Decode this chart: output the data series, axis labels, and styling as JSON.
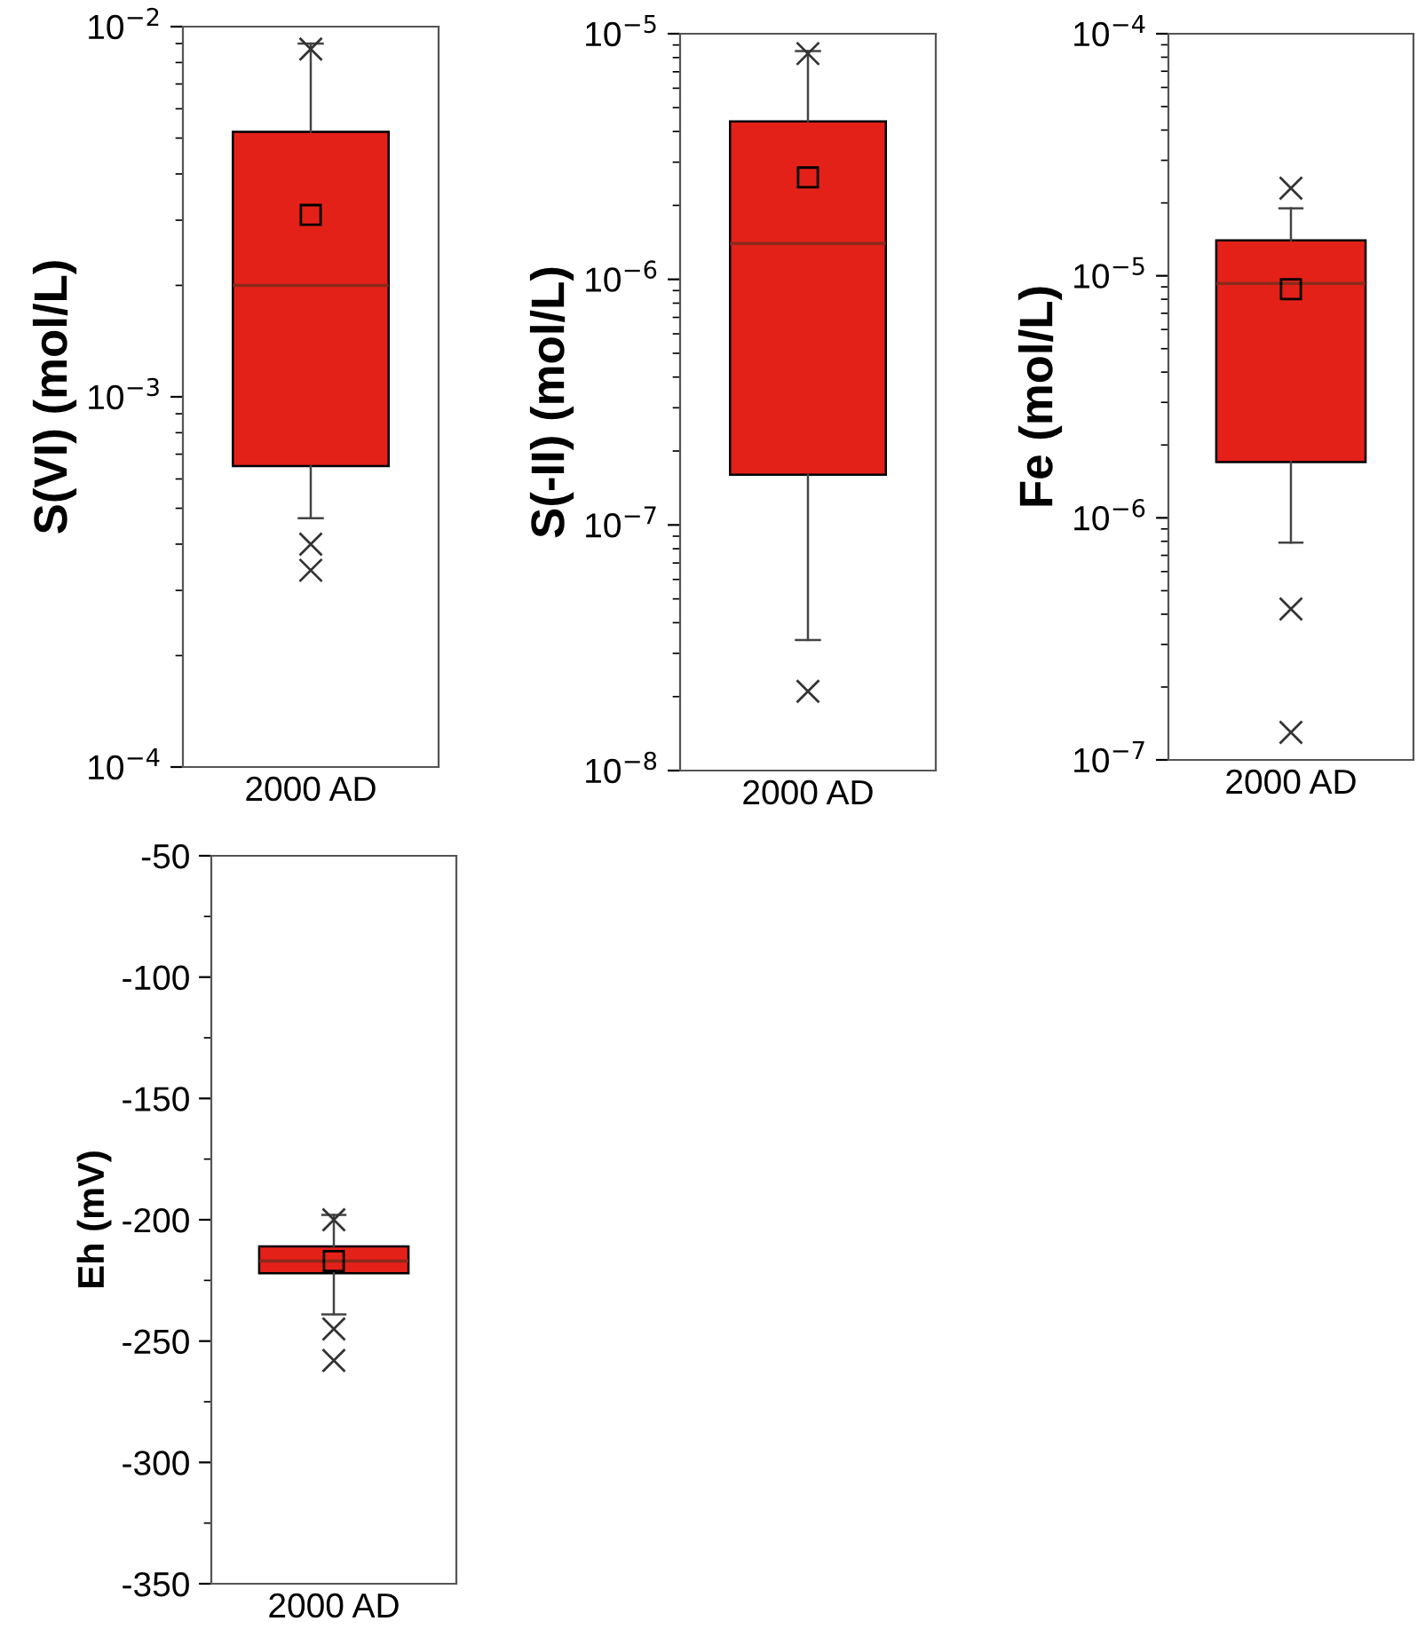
{
  "chart_data": [
    {
      "type": "box",
      "categories": [
        "2000 AD"
      ],
      "ylabel": "S(VI) (mol/L)",
      "log": "y",
      "ylim": [
        0.0001,
        0.01
      ],
      "yticks": [
        {
          "value": 0.0001,
          "label": "10$^{−4}$"
        },
        {
          "value": 0.001,
          "label": "10$^{−3}$"
        },
        {
          "value": 0.01,
          "label": "10$^{−2}$"
        }
      ],
      "color": "#e42119",
      "boxes": [
        {
          "low": 0.00047,
          "q1": 0.00065,
          "median": 0.002,
          "q3": 0.0052,
          "high": 0.009,
          "mean": 0.0031,
          "outliers": [
            0.0087,
            0.0004,
            0.00034
          ]
        }
      ]
    },
    {
      "type": "box",
      "categories": [
        "2000 AD"
      ],
      "ylabel": "S(-II) (mol/L)",
      "log": "y",
      "ylim": [
        1e-08,
        1e-05
      ],
      "yticks": [
        {
          "value": 1e-08,
          "label": "10$^{−8}$"
        },
        {
          "value": 1e-07,
          "label": "10$^{−7}$"
        },
        {
          "value": 1e-06,
          "label": "10$^{−6}$"
        },
        {
          "value": 1e-05,
          "label": "10$^{−5}$"
        }
      ],
      "color": "#e42119",
      "boxes": [
        {
          "low": 3.4e-08,
          "q1": 1.6e-07,
          "median": 1.4e-06,
          "q3": 4.4e-06,
          "high": 8.5e-06,
          "mean": 2.6e-06,
          "outliers": [
            8.3e-06,
            2.1e-08
          ]
        }
      ]
    },
    {
      "type": "box",
      "categories": [
        "2000 AD"
      ],
      "ylabel": "Fe (mol/L)",
      "log": "y",
      "ylim": [
        1e-07,
        0.0001
      ],
      "yticks": [
        {
          "value": 1e-07,
          "label": "10$^{−7}$"
        },
        {
          "value": 1e-06,
          "label": "10$^{−6}$"
        },
        {
          "value": 1e-05,
          "label": "10$^{−5}$"
        },
        {
          "value": 0.0001,
          "label": "10$^{−4}$"
        }
      ],
      "color": "#e42119",
      "boxes": [
        {
          "low": 7.9e-07,
          "q1": 1.7e-06,
          "median": 9.3e-06,
          "q3": 1.4e-05,
          "high": 1.9e-05,
          "mean": 8.8e-06,
          "outliers": [
            2.3e-05,
            4.2e-07,
            1.3e-07
          ]
        }
      ]
    },
    {
      "type": "box",
      "categories": [
        "2000 AD"
      ],
      "ylabel": "Eh (mV)",
      "ylim": [
        -350,
        -50
      ],
      "yticks": [
        -350,
        -300,
        -250,
        -200,
        -150,
        -100,
        -50
      ],
      "color": "#e42119",
      "boxes": [
        {
          "low": -239,
          "q1": -222,
          "median": -217,
          "q3": -211,
          "high": -198,
          "mean": -217,
          "outliers": [
            -200,
            -245,
            -258
          ]
        }
      ]
    }
  ]
}
